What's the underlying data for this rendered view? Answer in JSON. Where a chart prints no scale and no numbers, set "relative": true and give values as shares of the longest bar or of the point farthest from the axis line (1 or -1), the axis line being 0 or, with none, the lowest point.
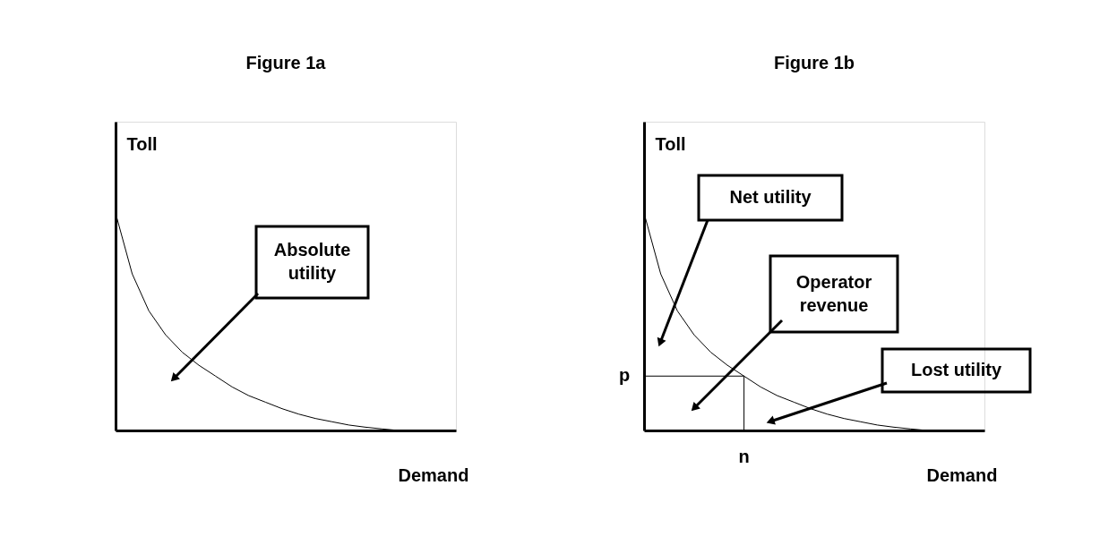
{
  "chart_data": [
    {
      "type": "line",
      "title": "Figure 1a",
      "xlabel": "Demand",
      "ylabel": "Toll",
      "relative": true,
      "color": "#000000",
      "categories": [
        null,
        null,
        null,
        null,
        null,
        null,
        null,
        null,
        null,
        null,
        null,
        null,
        null,
        null,
        null,
        null,
        null,
        null,
        null,
        null,
        null
      ],
      "values": [
        1,
        0.72,
        0.55,
        0.44,
        0.36,
        0.3,
        0.25,
        0.2,
        0.16,
        0.13,
        0.1,
        0.075,
        0.055,
        0.04,
        0.025,
        0.015,
        0.007,
        0,
        0,
        0,
        0
      ],
      "annotations": [
        "Absolute utility"
      ]
    },
    {
      "type": "line",
      "title": "Figure 1b",
      "xlabel": "Demand",
      "ylabel": "Toll",
      "relative": true,
      "color": "#000000",
      "categories": [
        null,
        null,
        null,
        null,
        null,
        null,
        null,
        null,
        null,
        null,
        null,
        null,
        null,
        null,
        null,
        null,
        null,
        null,
        null,
        null,
        null
      ],
      "values": [
        1,
        0.72,
        0.55,
        0.44,
        0.36,
        0.3,
        0.25,
        0.2,
        0.16,
        0.13,
        0.1,
        0.075,
        0.055,
        0.04,
        0.025,
        0.015,
        0.007,
        0,
        0,
        0,
        0
      ],
      "ref_lines": [
        {
          "axis": "y",
          "value": 0.25,
          "label": "p"
        }
      ],
      "annotations": [
        "Net utility",
        "Operator revenue",
        "Lost utility",
        "n"
      ]
    }
  ]
}
